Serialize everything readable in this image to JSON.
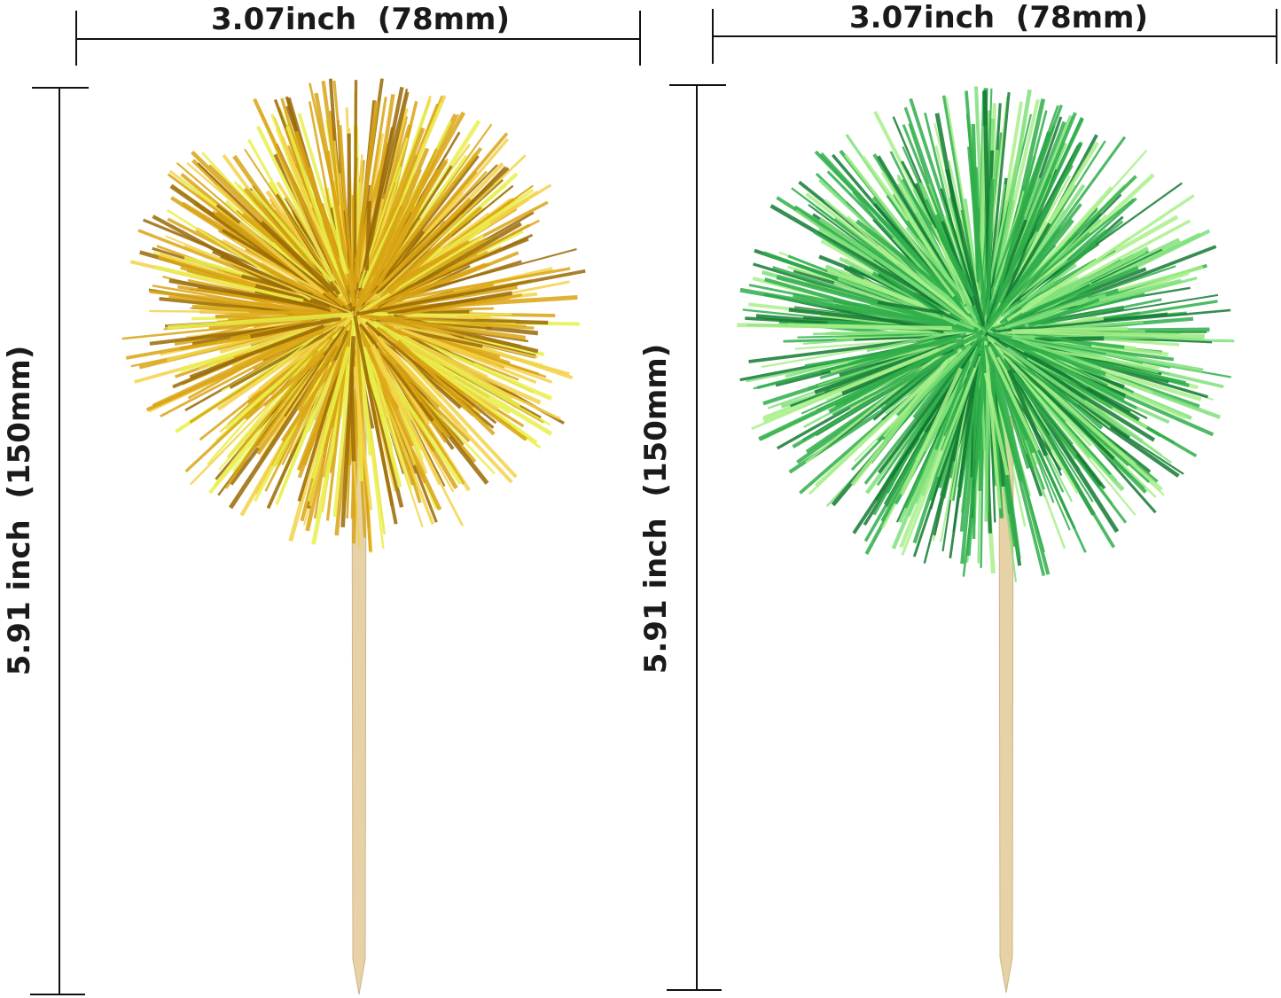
{
  "products": [
    {
      "name": "gold-pom-pom-topper",
      "width_label": "3.07inch  (78mm)",
      "height_label": "5.91 inch  (150mm)",
      "colors": {
        "main": "#d9a514",
        "light": "#f3d24a",
        "dark": "#9a6a05",
        "highlight": "#e9f04a"
      }
    },
    {
      "name": "green-pom-pom-topper",
      "width_label": "3.07inch  (78mm)",
      "height_label": "5.91 inch  (150mm)",
      "colors": {
        "main": "#2fae4a",
        "light": "#7fe07a",
        "dark": "#137a33",
        "highlight": "#a8f08a"
      }
    }
  ],
  "stick_color": "#e6d2a6",
  "line_color": "#111111"
}
